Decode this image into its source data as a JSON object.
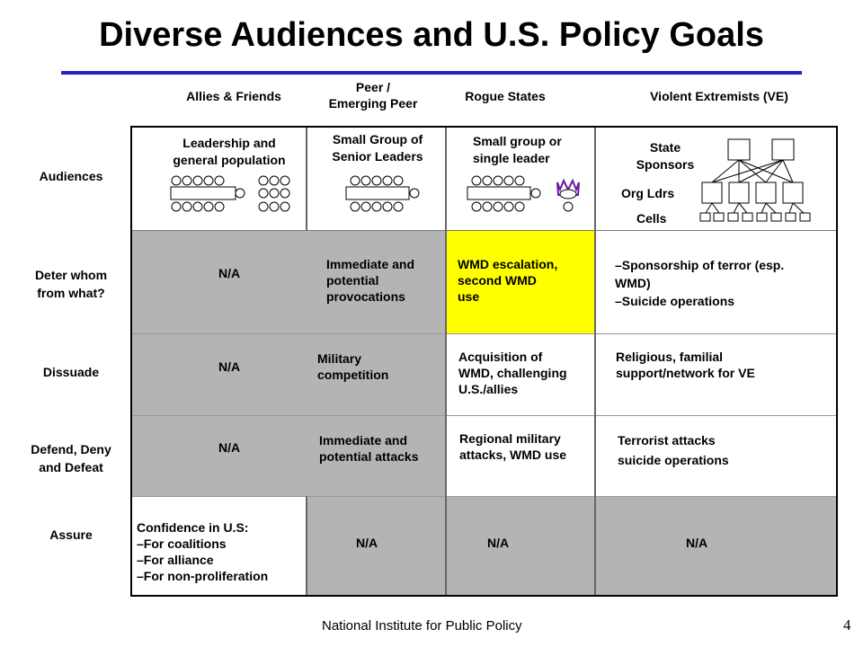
{
  "title": "Diverse Audiences and U.S. Policy Goals",
  "columns": {
    "allies": "Allies & Friends",
    "peer_line1": "Peer /",
    "peer_line2": "Emerging Peer",
    "rogue": "Rogue States",
    "ve": "Violent Extremists (VE)"
  },
  "rows": {
    "audiences": "Audiences",
    "deter_line1": "Deter whom",
    "deter_line2": "from what?",
    "dissuade": "Dissuade",
    "defend_line1": "Defend, Deny",
    "defend_line2": "and Defeat",
    "assure": "Assure"
  },
  "audiences": {
    "allies_line1": "Leadership and",
    "allies_line2": "general population",
    "peer_line1": "Small Group of",
    "peer_line2": "Senior Leaders",
    "rogue_line1": "Small group or",
    "rogue_line2": "single leader",
    "ve_state_line1": "State",
    "ve_state_line2": "Sponsors",
    "ve_org": "Org Ldrs",
    "ve_cells": "Cells"
  },
  "deter": {
    "allies": "N/A",
    "peer": [
      "Immediate and",
      "potential",
      "provocations"
    ],
    "rogue": [
      "WMD escalation,",
      "second WMD",
      "use"
    ],
    "ve": [
      "–Sponsorship of terror (esp.",
      "WMD)",
      "–Suicide operations"
    ]
  },
  "dissuade": {
    "allies": "N/A",
    "peer": [
      "Military",
      "competition"
    ],
    "rogue": [
      "Acquisition of",
      "WMD, challenging",
      "U.S./allies"
    ],
    "ve": [
      "Religious, familial",
      "support/network for VE"
    ]
  },
  "defend": {
    "allies": "N/A",
    "peer": [
      "Immediate and",
      "potential attacks"
    ],
    "rogue": [
      "Regional military",
      "attacks, WMD use"
    ],
    "ve": [
      "Terrorist attacks",
      "suicide operations"
    ]
  },
  "assure": {
    "allies": [
      "Confidence in U.S:",
      "–For coalitions",
      "–For alliance",
      "–For non-proliferation"
    ],
    "peer": "N/A",
    "rogue": "N/A",
    "ve": "N/A"
  },
  "colors": {
    "rule": "#2323c8",
    "gray": "#b4b4b4",
    "highlight": "#ffff00"
  },
  "footer": "National Institute for Public Policy",
  "page_number": "4"
}
